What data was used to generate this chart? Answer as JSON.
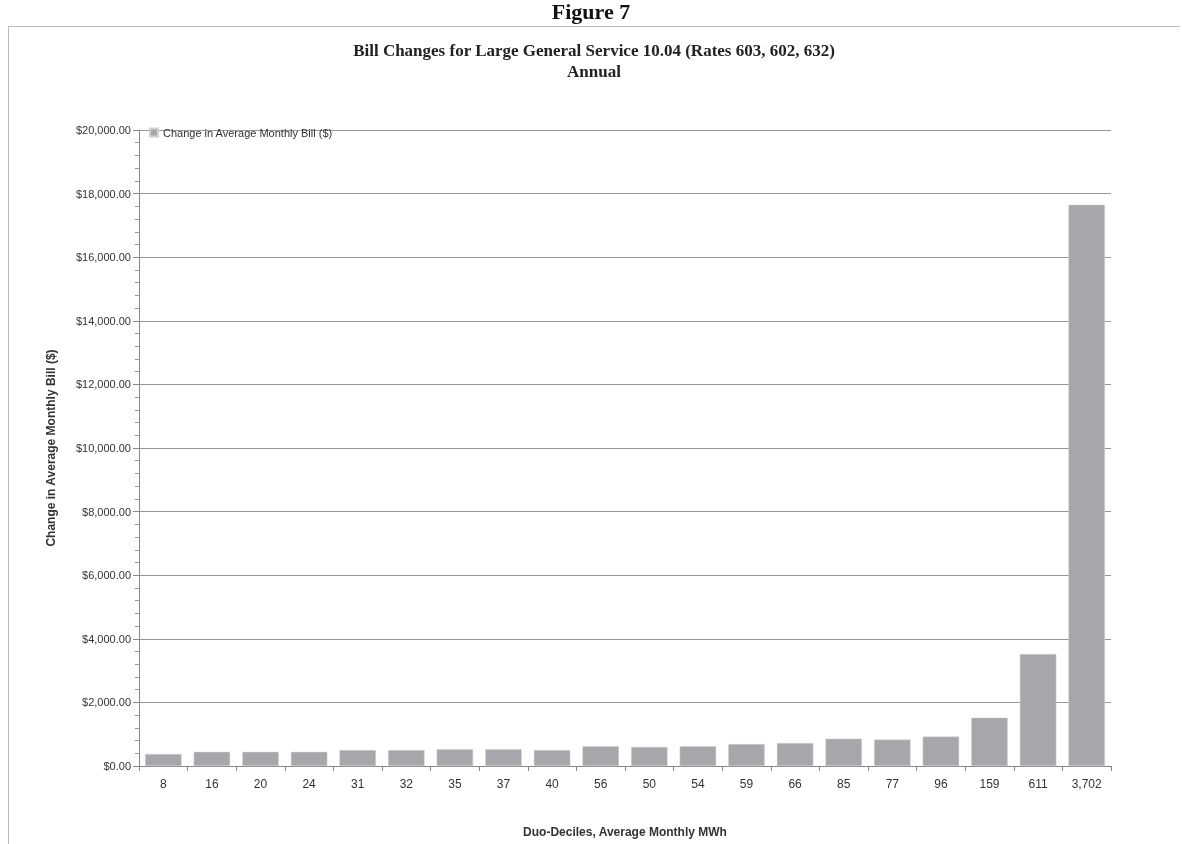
{
  "chart_data": {
    "type": "bar",
    "title": "Bill Changes for Large General Service 10.04 (Rates 603, 602, 632)\nAnnual",
    "annotations": [
      "Figure 7"
    ],
    "xlabel": "Duo-Deciles, Average Monthly MWh",
    "ylabel": "Change in Average Monthly Bill ($)",
    "categories": [
      "8",
      "16",
      "20",
      "24",
      "31",
      "32",
      "35",
      "37",
      "40",
      "56",
      "50",
      "54",
      "59",
      "66",
      "85",
      "77",
      "96",
      "159",
      "611",
      "3,702"
    ],
    "series": [
      {
        "name": "Change in Average Monthly Bill ($)",
        "color": "#a6a7aa",
        "values": [
          375,
          445,
          445,
          445,
          500,
          500,
          530,
          530,
          500,
          625,
          600,
          625,
          690,
          720,
          860,
          830,
          925,
          1520,
          3520,
          17650
        ]
      }
    ],
    "ylim": [
      0,
      20000
    ],
    "yticks": [
      {
        "value": 0,
        "label": "$0.00"
      },
      {
        "value": 2000,
        "label": "$2,000.00"
      },
      {
        "value": 4000,
        "label": "$4,000.00"
      },
      {
        "value": 6000,
        "label": "$6,000.00"
      },
      {
        "value": 8000,
        "label": "$8,000.00"
      },
      {
        "value": 10000,
        "label": "$10,000.00"
      },
      {
        "value": 12000,
        "label": "$12,000.00"
      },
      {
        "value": 14000,
        "label": "$14,000.00"
      },
      {
        "value": 16000,
        "label": "$16,000.00"
      },
      {
        "value": 18000,
        "label": "$18,000.00"
      },
      {
        "value": 20000,
        "label": "$20,000.00"
      }
    ],
    "grid": "y",
    "legend": "top left"
  }
}
